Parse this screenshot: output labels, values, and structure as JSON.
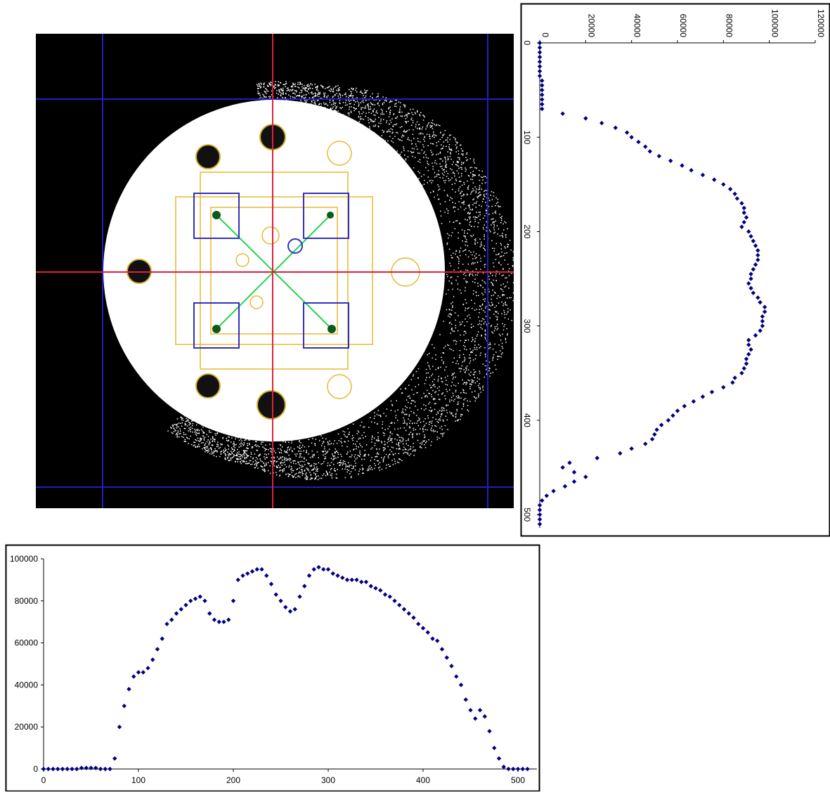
{
  "chart_data": [
    {
      "type": "scatter",
      "orient": "vertical",
      "color": "#000080",
      "x": [
        0,
        5,
        10,
        15,
        20,
        25,
        30,
        35,
        40,
        45,
        50,
        55,
        60,
        65,
        70,
        75,
        80,
        85,
        90,
        95,
        100,
        105,
        110,
        115,
        120,
        125,
        130,
        135,
        140,
        145,
        150,
        155,
        160,
        165,
        170,
        175,
        180,
        185,
        190,
        195,
        200,
        205,
        210,
        215,
        220,
        225,
        230,
        235,
        240,
        245,
        250,
        255,
        260,
        265,
        270,
        275,
        280,
        285,
        290,
        295,
        300,
        305,
        310,
        315,
        320,
        325,
        330,
        335,
        340,
        345,
        350,
        355,
        360,
        365,
        370,
        375,
        380,
        385,
        390,
        395,
        400,
        405,
        410,
        415,
        420,
        425,
        430,
        435,
        440,
        445,
        450,
        455,
        460,
        465,
        470,
        475,
        480,
        485,
        490,
        495,
        500,
        505,
        510
      ],
      "values": [
        0,
        0,
        0,
        0,
        0,
        0,
        0,
        0,
        1000,
        1000,
        1000,
        1000,
        1000,
        1000,
        1000,
        10000,
        20000,
        27000,
        33000,
        38000,
        40000,
        43000,
        46000,
        48000,
        52000,
        57000,
        62000,
        66000,
        71000,
        76000,
        80000,
        83000,
        85000,
        86000,
        88000,
        89000,
        89000,
        90000,
        89000,
        88000,
        91000,
        92000,
        93000,
        94000,
        95000,
        95000,
        95000,
        94000,
        93000,
        92000,
        92000,
        91000,
        92000,
        93000,
        95000,
        96000,
        98000,
        98000,
        97000,
        97000,
        97000,
        96000,
        94000,
        91000,
        91000,
        92000,
        91000,
        90000,
        90000,
        89000,
        88000,
        85000,
        84000,
        80000,
        75000,
        71000,
        67000,
        63000,
        60000,
        58000,
        56000,
        53000,
        51000,
        50000,
        49000,
        46000,
        40000,
        35000,
        25000,
        13000,
        10000,
        15000,
        20000,
        15000,
        11000,
        6000,
        3000,
        1000,
        0,
        0,
        0,
        0,
        0
      ],
      "xlim": [
        0,
        520
      ],
      "xticks": [
        0,
        100,
        200,
        300,
        400,
        500
      ],
      "ylim": [
        0,
        120000
      ],
      "yticks": [
        0,
        20000,
        40000,
        60000,
        80000,
        100000,
        120000
      ]
    },
    {
      "type": "scatter",
      "orient": "horizontal",
      "color": "#000080",
      "x": [
        0,
        5,
        10,
        15,
        20,
        25,
        30,
        35,
        40,
        45,
        50,
        55,
        60,
        65,
        70,
        75,
        80,
        85,
        90,
        95,
        100,
        105,
        110,
        115,
        120,
        125,
        130,
        135,
        140,
        145,
        150,
        155,
        160,
        165,
        170,
        175,
        180,
        185,
        190,
        195,
        200,
        205,
        210,
        215,
        220,
        225,
        230,
        235,
        240,
        245,
        250,
        255,
        260,
        265,
        270,
        275,
        280,
        285,
        290,
        295,
        300,
        305,
        310,
        315,
        320,
        325,
        330,
        335,
        340,
        345,
        350,
        355,
        360,
        365,
        370,
        375,
        380,
        385,
        390,
        395,
        400,
        405,
        410,
        415,
        420,
        425,
        430,
        435,
        440,
        445,
        450,
        455,
        460,
        465,
        470,
        475,
        480,
        485,
        490,
        495,
        500,
        505,
        510
      ],
      "values": [
        0,
        0,
        0,
        0,
        0,
        0,
        0,
        0,
        500,
        500,
        500,
        500,
        0,
        0,
        0,
        5000,
        20000,
        30000,
        38000,
        44000,
        46000,
        46000,
        48000,
        52000,
        57000,
        62000,
        69000,
        71000,
        74000,
        76000,
        78000,
        80000,
        81000,
        82000,
        80000,
        74000,
        71000,
        70000,
        70000,
        71000,
        80000,
        90000,
        92000,
        93000,
        94000,
        95000,
        95000,
        92000,
        88000,
        83000,
        80000,
        77000,
        75000,
        76000,
        82000,
        87000,
        92000,
        95000,
        96000,
        95000,
        95000,
        93000,
        92000,
        91000,
        90000,
        90000,
        90000,
        89000,
        89000,
        87000,
        86000,
        85000,
        83000,
        82000,
        80000,
        78000,
        76000,
        74000,
        72000,
        69000,
        67000,
        65000,
        62000,
        61000,
        57000,
        53000,
        49000,
        44000,
        40000,
        33000,
        28000,
        24000,
        28000,
        25000,
        18000,
        10000,
        5000,
        1000,
        0,
        0,
        0,
        0,
        0
      ],
      "xlim": [
        0,
        520
      ],
      "xticks": [
        0,
        100,
        200,
        300,
        400,
        500
      ],
      "ylim": [
        0,
        100000
      ],
      "yticks": [
        0,
        20000,
        40000,
        60000,
        80000,
        100000
      ]
    }
  ]
}
